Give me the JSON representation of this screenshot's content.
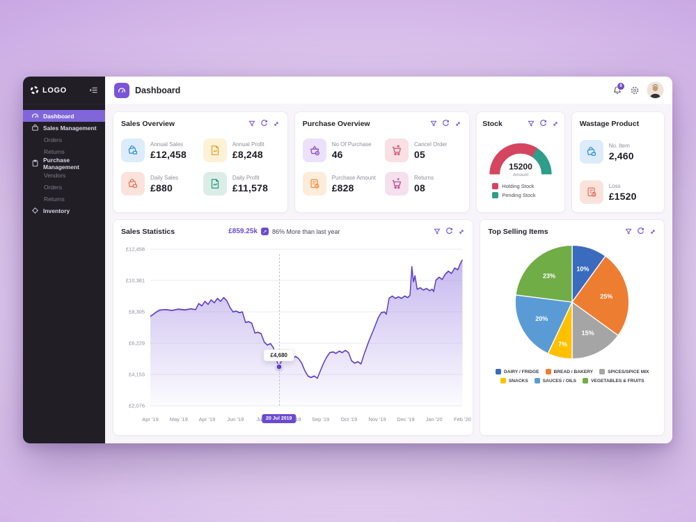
{
  "app": {
    "logo_text": "LOGO",
    "accent_color": "#6c4ad0",
    "header": {
      "title": "Dashboard",
      "notification_count": "9"
    }
  },
  "sidebar": {
    "items": [
      {
        "label": "Dashboard",
        "type": "item",
        "icon": "dashboard-icon",
        "active": true
      },
      {
        "label": "Sales Management",
        "type": "item",
        "icon": "briefcase-icon"
      },
      {
        "label": "Orders",
        "type": "sub"
      },
      {
        "label": "Returns",
        "type": "sub"
      },
      {
        "label": "Purchase Management",
        "type": "item",
        "icon": "clipboard-icon"
      },
      {
        "label": "Vendors",
        "type": "sub"
      },
      {
        "label": "Orders",
        "type": "sub"
      },
      {
        "label": "Returns",
        "type": "sub"
      },
      {
        "label": "Inventory",
        "type": "item",
        "icon": "wheel-icon"
      }
    ]
  },
  "cards": {
    "sales_overview": {
      "title": "Sales Overview",
      "stats": [
        {
          "label": "Annual Sales",
          "value": "£12,458",
          "icon": "sales-bag-icon"
        },
        {
          "label": "Annual Profit",
          "value": "£8,248",
          "icon": "profit-doc-icon"
        },
        {
          "label": "Daily Sales",
          "value": "£880",
          "icon": "sales-bag-icon"
        },
        {
          "label": "Daily Profit",
          "value": "£11,578",
          "icon": "profit-doc-icon"
        }
      ]
    },
    "purchase_overview": {
      "title": "Purchase Overview",
      "stats": [
        {
          "label": "No Of Purchase",
          "value": "46",
          "icon": "basket-icon"
        },
        {
          "label": "Cancel Order",
          "value": "05",
          "icon": "cart-cancel-icon"
        },
        {
          "label": "Purchase Amount",
          "value": "£828",
          "icon": "invoice-icon"
        },
        {
          "label": "Returns",
          "value": "08",
          "icon": "cart-return-icon"
        }
      ]
    },
    "stock": {
      "title": "Stock"
    },
    "wastage": {
      "title": "Wastage Product",
      "stats": [
        {
          "label": "No. Item",
          "value": "2,460",
          "icon": "sales-bag-icon"
        },
        {
          "label": "Loss",
          "value": "£1520",
          "icon": "invoice-icon"
        }
      ]
    },
    "sales_statistics": {
      "title": "Sales Statistics",
      "highlight_value": "£859.25k",
      "comparison_text": "86% More than last year"
    },
    "top_selling": {
      "title": "Top Selling Items"
    }
  },
  "chart_data": [
    {
      "type": "area",
      "title": "Sales Statistics",
      "line_color": "#5f3fc3",
      "grid": true,
      "y_ticks": [
        "£12,458",
        "£10,381",
        "£8,305",
        "£6,229",
        "£4,153",
        "£2,076"
      ],
      "y_max": 12458,
      "y_min": 2076,
      "x_labels": [
        "Apr '19",
        "May '19",
        "Apr '19",
        "Jun '19",
        "Jul '19",
        "Aug '19",
        "Sep '19",
        "Oct '19",
        "Nov '19",
        "Dec '19",
        "Jan '20",
        "Feb '20"
      ],
      "selected_date": "20 Jul 2019",
      "tooltip": {
        "value": "£4,680",
        "x_frac": 0.412,
        "y_value": 4680
      },
      "series": [
        [
          0,
          8000
        ],
        [
          0.01,
          8150
        ],
        [
          0.02,
          8300
        ],
        [
          0.03,
          8420
        ],
        [
          0.05,
          8450
        ],
        [
          0.07,
          8400
        ],
        [
          0.09,
          8480
        ],
        [
          0.11,
          8430
        ],
        [
          0.13,
          8500
        ],
        [
          0.145,
          8450
        ],
        [
          0.155,
          8850
        ],
        [
          0.165,
          8700
        ],
        [
          0.175,
          9000
        ],
        [
          0.185,
          8800
        ],
        [
          0.195,
          9100
        ],
        [
          0.205,
          8900
        ],
        [
          0.215,
          9200
        ],
        [
          0.225,
          9000
        ],
        [
          0.235,
          9250
        ],
        [
          0.245,
          9050
        ],
        [
          0.255,
          8600
        ],
        [
          0.265,
          8300
        ],
        [
          0.275,
          8350
        ],
        [
          0.285,
          8250
        ],
        [
          0.295,
          8300
        ],
        [
          0.305,
          7600
        ],
        [
          0.315,
          7650
        ],
        [
          0.325,
          7550
        ],
        [
          0.335,
          6900
        ],
        [
          0.345,
          6950
        ],
        [
          0.355,
          6850
        ],
        [
          0.365,
          6300
        ],
        [
          0.375,
          6100
        ],
        [
          0.385,
          6200
        ],
        [
          0.395,
          5900
        ],
        [
          0.4,
          5400
        ],
        [
          0.406,
          5000
        ],
        [
          0.412,
          4680
        ],
        [
          0.418,
          4950
        ],
        [
          0.425,
          5250
        ],
        [
          0.435,
          5100
        ],
        [
          0.445,
          5300
        ],
        [
          0.455,
          5150
        ],
        [
          0.465,
          5350
        ],
        [
          0.475,
          5200
        ],
        [
          0.485,
          4900
        ],
        [
          0.495,
          4400
        ],
        [
          0.505,
          4050
        ],
        [
          0.515,
          3950
        ],
        [
          0.525,
          4050
        ],
        [
          0.535,
          3900
        ],
        [
          0.545,
          4400
        ],
        [
          0.555,
          4900
        ],
        [
          0.565,
          5300
        ],
        [
          0.575,
          5600
        ],
        [
          0.585,
          5650
        ],
        [
          0.595,
          5550
        ],
        [
          0.605,
          5700
        ],
        [
          0.615,
          5600
        ],
        [
          0.625,
          5750
        ],
        [
          0.635,
          5600
        ],
        [
          0.645,
          5050
        ],
        [
          0.655,
          4900
        ],
        [
          0.665,
          5000
        ],
        [
          0.675,
          4850
        ],
        [
          0.685,
          5500
        ],
        [
          0.7,
          6350
        ],
        [
          0.715,
          7100
        ],
        [
          0.73,
          7900
        ],
        [
          0.74,
          8250
        ],
        [
          0.75,
          8300
        ],
        [
          0.756,
          8150
        ],
        [
          0.765,
          9200
        ],
        [
          0.775,
          9350
        ],
        [
          0.785,
          9200
        ],
        [
          0.795,
          9300
        ],
        [
          0.805,
          9200
        ],
        [
          0.815,
          9350
        ],
        [
          0.825,
          9250
        ],
        [
          0.832,
          9400
        ],
        [
          0.838,
          11300
        ],
        [
          0.843,
          10300
        ],
        [
          0.848,
          10700
        ],
        [
          0.855,
          9800
        ],
        [
          0.865,
          9900
        ],
        [
          0.875,
          9750
        ],
        [
          0.885,
          9850
        ],
        [
          0.895,
          9700
        ],
        [
          0.903,
          9800
        ],
        [
          0.908,
          9650
        ],
        [
          0.915,
          10400
        ],
        [
          0.925,
          10600
        ],
        [
          0.935,
          10450
        ],
        [
          0.945,
          10800
        ],
        [
          0.955,
          11000
        ],
        [
          0.965,
          10850
        ],
        [
          0.975,
          11200
        ],
        [
          0.985,
          11100
        ],
        [
          0.993,
          11500
        ],
        [
          1,
          11750
        ]
      ]
    },
    {
      "type": "pie",
      "title": "Top Selling Items",
      "start_angle_deg": -90,
      "direction": "clockwise",
      "slices": [
        {
          "label": "DAIRY / FRIDGE",
          "pct": 10,
          "color": "#3a6bbf"
        },
        {
          "label": "BREAD / BAKERY",
          "pct": 25,
          "color": "#ed7d31"
        },
        {
          "label": "SPICES/SPICE MIX",
          "pct": 15,
          "color": "#a5a5a5"
        },
        {
          "label": "SNACKS",
          "pct": 7,
          "color": "#ffc000"
        },
        {
          "label": "SAUCES / OILS",
          "pct": 20,
          "color": "#5b9bd5"
        },
        {
          "label": "VEGETABLES & FRUITS",
          "pct": 23,
          "color": "#70ad47"
        }
      ]
    },
    {
      "type": "gauge",
      "title": "Stock",
      "center_value": "15200",
      "center_label": "Amount",
      "segments": [
        {
          "label": "Holding Stock",
          "pct": 68,
          "color": "#d6455f"
        },
        {
          "label": "Pending Stock",
          "pct": 32,
          "color": "#2e9d8a"
        }
      ]
    }
  ]
}
